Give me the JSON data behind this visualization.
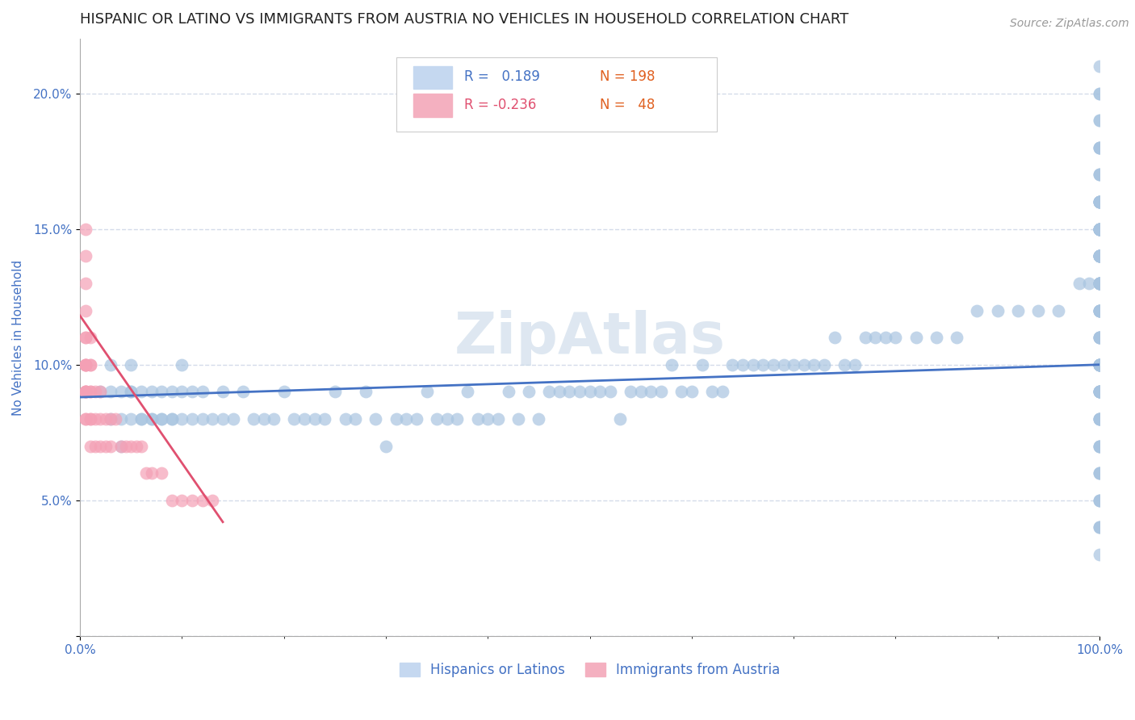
{
  "title": "HISPANIC OR LATINO VS IMMIGRANTS FROM AUSTRIA NO VEHICLES IN HOUSEHOLD CORRELATION CHART",
  "source_text": "Source: ZipAtlas.com",
  "ylabel": "No Vehicles in Household",
  "legend_labels": [
    "Hispanics or Latinos",
    "Immigrants from Austria"
  ],
  "blue_r": 0.189,
  "blue_n": 198,
  "pink_r": -0.236,
  "pink_n": 48,
  "blue_color": "#a8c4e0",
  "pink_color": "#f4a0b5",
  "blue_line_color": "#4472c4",
  "pink_line_color": "#e05070",
  "axis_label_color": "#4472c4",
  "watermark_color": "#c8d8e8",
  "background_color": "#ffffff",
  "xlim": [
    0,
    100
  ],
  "ylim": [
    0,
    22
  ],
  "yticks": [
    0,
    5,
    10,
    15,
    20
  ],
  "ytick_labels": [
    "",
    "5.0%",
    "10.0%",
    "15.0%",
    "20.0%"
  ],
  "xticks": [
    0,
    100
  ],
  "xtick_labels": [
    "0.0%",
    "100.0%"
  ],
  "blue_scatter_x": [
    2,
    3,
    3,
    3,
    4,
    4,
    4,
    5,
    5,
    5,
    5,
    6,
    6,
    6,
    7,
    7,
    7,
    8,
    8,
    8,
    9,
    9,
    9,
    10,
    10,
    10,
    11,
    11,
    12,
    12,
    13,
    14,
    14,
    15,
    16,
    17,
    18,
    19,
    20,
    21,
    22,
    23,
    24,
    25,
    26,
    27,
    28,
    29,
    30,
    31,
    32,
    33,
    34,
    35,
    36,
    37,
    38,
    39,
    40,
    41,
    42,
    43,
    44,
    45,
    46,
    47,
    48,
    49,
    50,
    51,
    52,
    53,
    54,
    55,
    56,
    57,
    58,
    59,
    60,
    61,
    62,
    63,
    64,
    65,
    66,
    67,
    68,
    69,
    70,
    71,
    72,
    73,
    74,
    75,
    76,
    77,
    78,
    79,
    80,
    82,
    84,
    86,
    88,
    90,
    92,
    94,
    96,
    98,
    99,
    100,
    100,
    100,
    100,
    100,
    100,
    100,
    100,
    100,
    100,
    100,
    100,
    100,
    100,
    100,
    100,
    100,
    100,
    100,
    100,
    100,
    100,
    100,
    100,
    100,
    100,
    100,
    100,
    100,
    100,
    100,
    100,
    100,
    100,
    100,
    100,
    100,
    100,
    100,
    100,
    100,
    100,
    100,
    100,
    100,
    100,
    100,
    100,
    100,
    100,
    100,
    100,
    100,
    100,
    100,
    100,
    100,
    100,
    100,
    100,
    100,
    100,
    100,
    100,
    100,
    100,
    100,
    100,
    100,
    100,
    100,
    100,
    100,
    100,
    100,
    100,
    100,
    100,
    100,
    100,
    100,
    100,
    100,
    100,
    100,
    100,
    100,
    100,
    100
  ],
  "blue_scatter_y": [
    9,
    8,
    9,
    10,
    7,
    8,
    9,
    8,
    9,
    9,
    10,
    8,
    8,
    9,
    8,
    8,
    9,
    8,
    8,
    9,
    8,
    8,
    9,
    8,
    9,
    10,
    8,
    9,
    8,
    9,
    8,
    8,
    9,
    8,
    9,
    8,
    8,
    8,
    9,
    8,
    8,
    8,
    8,
    9,
    8,
    8,
    9,
    8,
    7,
    8,
    8,
    8,
    9,
    8,
    8,
    8,
    9,
    8,
    8,
    8,
    9,
    8,
    9,
    8,
    9,
    9,
    9,
    9,
    9,
    9,
    9,
    8,
    9,
    9,
    9,
    9,
    10,
    9,
    9,
    10,
    9,
    9,
    10,
    10,
    10,
    10,
    10,
    10,
    10,
    10,
    10,
    10,
    11,
    10,
    10,
    11,
    11,
    11,
    11,
    11,
    11,
    11,
    12,
    12,
    12,
    12,
    12,
    13,
    13,
    13,
    13,
    14,
    14,
    14,
    14,
    15,
    15,
    15,
    15,
    16,
    16,
    5,
    6,
    7,
    8,
    9,
    9,
    10,
    10,
    10,
    11,
    11,
    12,
    12,
    13,
    13,
    14,
    15,
    18,
    19,
    20,
    20,
    21,
    3,
    4,
    8,
    9,
    12,
    16,
    17,
    4,
    5,
    6,
    7,
    8,
    9,
    10,
    11,
    14,
    15,
    16,
    9,
    10,
    11,
    12,
    13,
    14,
    15,
    16,
    17,
    18,
    4,
    5,
    6,
    7,
    8,
    9,
    10,
    12,
    13,
    14,
    15,
    16,
    17,
    18,
    19,
    7,
    8,
    9,
    10,
    10,
    11,
    12,
    13,
    14,
    15,
    16,
    18
  ],
  "pink_scatter_x": [
    0.5,
    0.5,
    0.5,
    0.5,
    0.5,
    0.5,
    0.5,
    0.5,
    0.5,
    0.5,
    0.5,
    0.5,
    0.5,
    0.5,
    0.5,
    0.5,
    1,
    1,
    1,
    1,
    1,
    1,
    1,
    1,
    1.5,
    1.5,
    1.5,
    2,
    2,
    2,
    2.5,
    2.5,
    3,
    3,
    3.5,
    4,
    4.5,
    5,
    5.5,
    6,
    6.5,
    7,
    8,
    9,
    10,
    11,
    12,
    13
  ],
  "pink_scatter_y": [
    8,
    8,
    9,
    9,
    9,
    9,
    10,
    10,
    10,
    10,
    11,
    11,
    12,
    13,
    14,
    15,
    7,
    8,
    8,
    9,
    9,
    10,
    10,
    11,
    7,
    8,
    9,
    7,
    8,
    9,
    7,
    8,
    7,
    8,
    8,
    7,
    7,
    7,
    7,
    7,
    6,
    6,
    6,
    5,
    5,
    5,
    5,
    5
  ],
  "blue_line_x": [
    0,
    100
  ],
  "blue_line_y_start": 8.8,
  "blue_line_y_end": 10.0,
  "pink_line_x": [
    0,
    14
  ],
  "pink_line_y_start": 11.8,
  "pink_line_y_end": 4.2,
  "grid_color": "#d0d8e8",
  "title_fontsize": 13,
  "axis_fontsize": 11,
  "tick_fontsize": 11,
  "legend_fontsize": 12,
  "watermark_fontsize": 52,
  "source_fontsize": 10
}
